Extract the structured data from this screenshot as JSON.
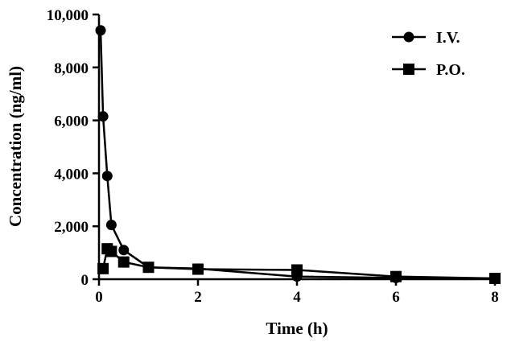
{
  "chart_data": {
    "type": "line",
    "xlabel": "Time (h)",
    "ylabel": "Concentration (ng/ml)",
    "xlim": [
      0,
      8
    ],
    "ylim": [
      0,
      10000
    ],
    "x_ticks": [
      0,
      2,
      4,
      6,
      8
    ],
    "x_tick_labels": [
      "0",
      "2",
      "4",
      "6",
      "8"
    ],
    "y_ticks": [
      0,
      2000,
      4000,
      6000,
      8000,
      10000
    ],
    "y_tick_labels": [
      "0",
      "2,000",
      "4,000",
      "6,000",
      "8,000",
      "10,000"
    ],
    "grid": false,
    "legend_position": "top-right",
    "series": [
      {
        "name": "I.V.",
        "marker": "circle",
        "color": "#000000",
        "x": [
          0.033,
          0.083,
          0.167,
          0.25,
          0.5,
          1,
          2,
          4,
          6,
          8
        ],
        "y": [
          9400,
          6150,
          3900,
          2050,
          1100,
          450,
          400,
          100,
          50,
          30
        ]
      },
      {
        "name": "P.O.",
        "marker": "square",
        "color": "#000000",
        "x": [
          0.083,
          0.167,
          0.25,
          0.5,
          1,
          2,
          4,
          6,
          8
        ],
        "y": [
          400,
          1150,
          1050,
          650,
          450,
          380,
          350,
          100,
          30
        ]
      }
    ]
  }
}
